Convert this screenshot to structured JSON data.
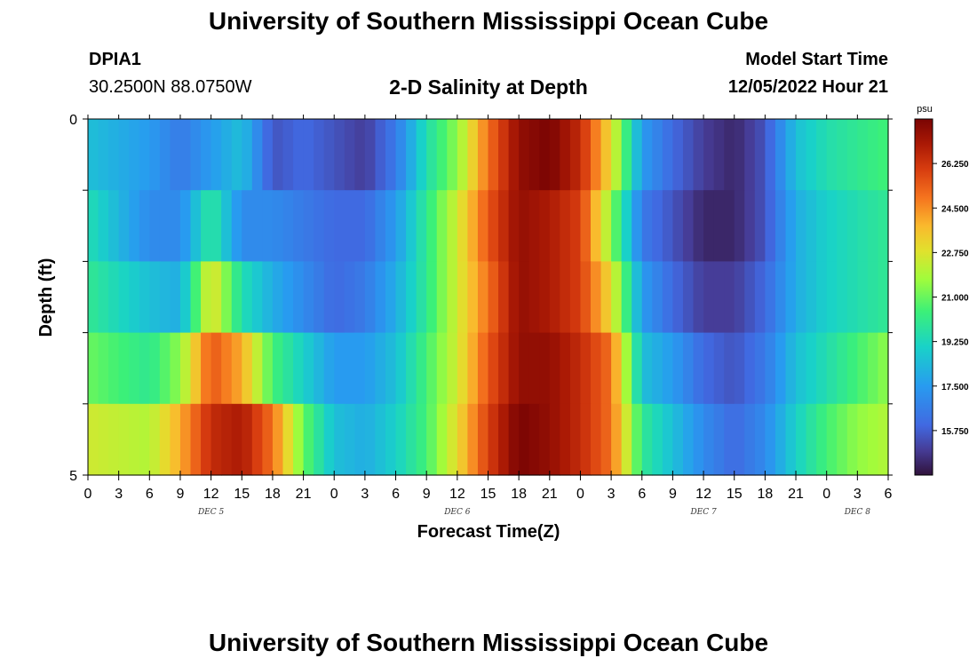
{
  "header": {
    "title": "University of Southern Mississippi Ocean Cube",
    "station": "DPIA1",
    "coords": "30.2500N  88.0750W",
    "subtitle": "2-D Salinity at Depth",
    "model_label": "Model Start Time",
    "model_time": "12/05/2022 Hour 21"
  },
  "footer": {
    "title": "University of Southern Mississippi Ocean Cube"
  },
  "chart_data": {
    "type": "heatmap",
    "title": "2-D Salinity at Depth",
    "xlabel": "Forecast Time(Z)",
    "ylabel": "Depth (ft)",
    "x_tick_labels": [
      "0",
      "3",
      "6",
      "9",
      "12",
      "15",
      "18",
      "21",
      "0",
      "3",
      "6",
      "9",
      "12",
      "15",
      "18",
      "21",
      "0",
      "3",
      "6",
      "9",
      "12",
      "15",
      "18",
      "21",
      "0",
      "3",
      "6"
    ],
    "y_tick_labels": [
      "0",
      "5"
    ],
    "y_range": [
      0,
      5
    ],
    "day_labels": [
      {
        "label": "DEC 5",
        "tick": 4
      },
      {
        "label": "DEC 6",
        "tick": 12
      },
      {
        "label": "DEC 7",
        "tick": 20
      },
      {
        "label": "DEC 8",
        "tick": 25
      }
    ],
    "colorbar": {
      "unit": "psu",
      "min": 14.0,
      "max": 28.0,
      "ticks": [
        15.75,
        17.5,
        19.25,
        21.0,
        22.75,
        24.5,
        26.25
      ],
      "tick_labels": [
        "15.750",
        "17.500",
        "19.250",
        "21.000",
        "22.750",
        "24.500",
        "26.250"
      ]
    },
    "hours": [
      0,
      6,
      9,
      12,
      15,
      18,
      21,
      24,
      27,
      30,
      33,
      36,
      39,
      42,
      45,
      48,
      51,
      54,
      57,
      60,
      63,
      66,
      69,
      72,
      75,
      78
    ],
    "depth_bands_ft": [
      "0-1",
      "1-2",
      "2-3",
      "3-4",
      "4-5"
    ],
    "salinity": [
      [
        18.5,
        17.5,
        16.5,
        17.5,
        18.5,
        15.5,
        16.0,
        15.5,
        15.0,
        16.5,
        19.5,
        21.5,
        25.0,
        27.5,
        28.0,
        26.5,
        23.0,
        17.5,
        16.0,
        15.0,
        14.5,
        15.5,
        18.5,
        19.5,
        20.0,
        20.5
      ],
      [
        19.5,
        17.0,
        17.0,
        20.0,
        17.0,
        17.0,
        16.5,
        16.0,
        16.0,
        17.5,
        20.0,
        22.5,
        25.5,
        27.5,
        27.0,
        26.0,
        21.5,
        16.5,
        15.5,
        14.5,
        14.5,
        15.5,
        18.0,
        19.0,
        19.5,
        20.0
      ],
      [
        20.0,
        18.5,
        18.0,
        23.0,
        19.5,
        18.0,
        17.0,
        16.0,
        16.5,
        18.0,
        20.0,
        22.5,
        25.0,
        27.5,
        27.0,
        26.0,
        23.0,
        17.5,
        16.0,
        15.0,
        15.0,
        16.0,
        18.0,
        19.0,
        19.5,
        20.0
      ],
      [
        21.0,
        20.0,
        21.5,
        25.5,
        24.0,
        20.5,
        19.0,
        17.5,
        17.5,
        18.5,
        20.5,
        22.5,
        25.5,
        27.5,
        27.5,
        26.5,
        25.0,
        18.5,
        17.5,
        16.0,
        15.5,
        16.5,
        18.5,
        19.5,
        20.5,
        21.5
      ],
      [
        22.5,
        22.0,
        24.0,
        26.5,
        27.0,
        25.0,
        21.0,
        18.5,
        18.0,
        19.0,
        20.5,
        23.0,
        26.0,
        28.0,
        27.5,
        26.5,
        25.0,
        20.0,
        18.5,
        17.0,
        16.0,
        17.0,
        19.0,
        20.5,
        21.5,
        22.0
      ]
    ]
  }
}
